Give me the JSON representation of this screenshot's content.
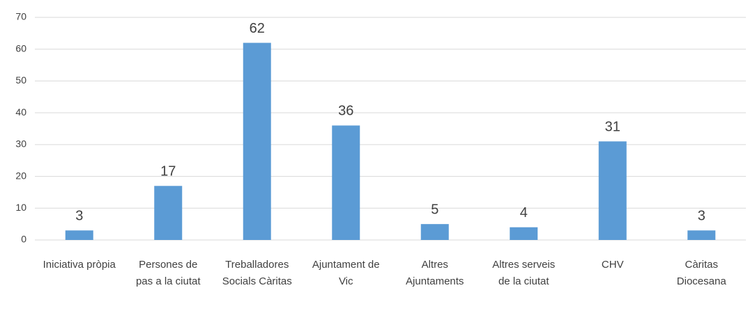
{
  "chart_data": {
    "type": "bar",
    "categories": [
      "Iniciativa pròpia",
      "Persones de pas a la ciutat",
      "Treballadores Socials Càritas",
      "Ajuntament de Vic",
      "Altres Ajuntaments",
      "Altres serveis de la ciutat",
      "CHV",
      "Càritas Diocesana"
    ],
    "values": [
      3,
      17,
      62,
      36,
      5,
      4,
      31,
      3
    ],
    "color": "#5b9bd5",
    "ylim": [
      0,
      70
    ],
    "yticks": [
      0,
      10,
      20,
      30,
      40,
      50,
      60,
      70
    ],
    "grid": true
  }
}
